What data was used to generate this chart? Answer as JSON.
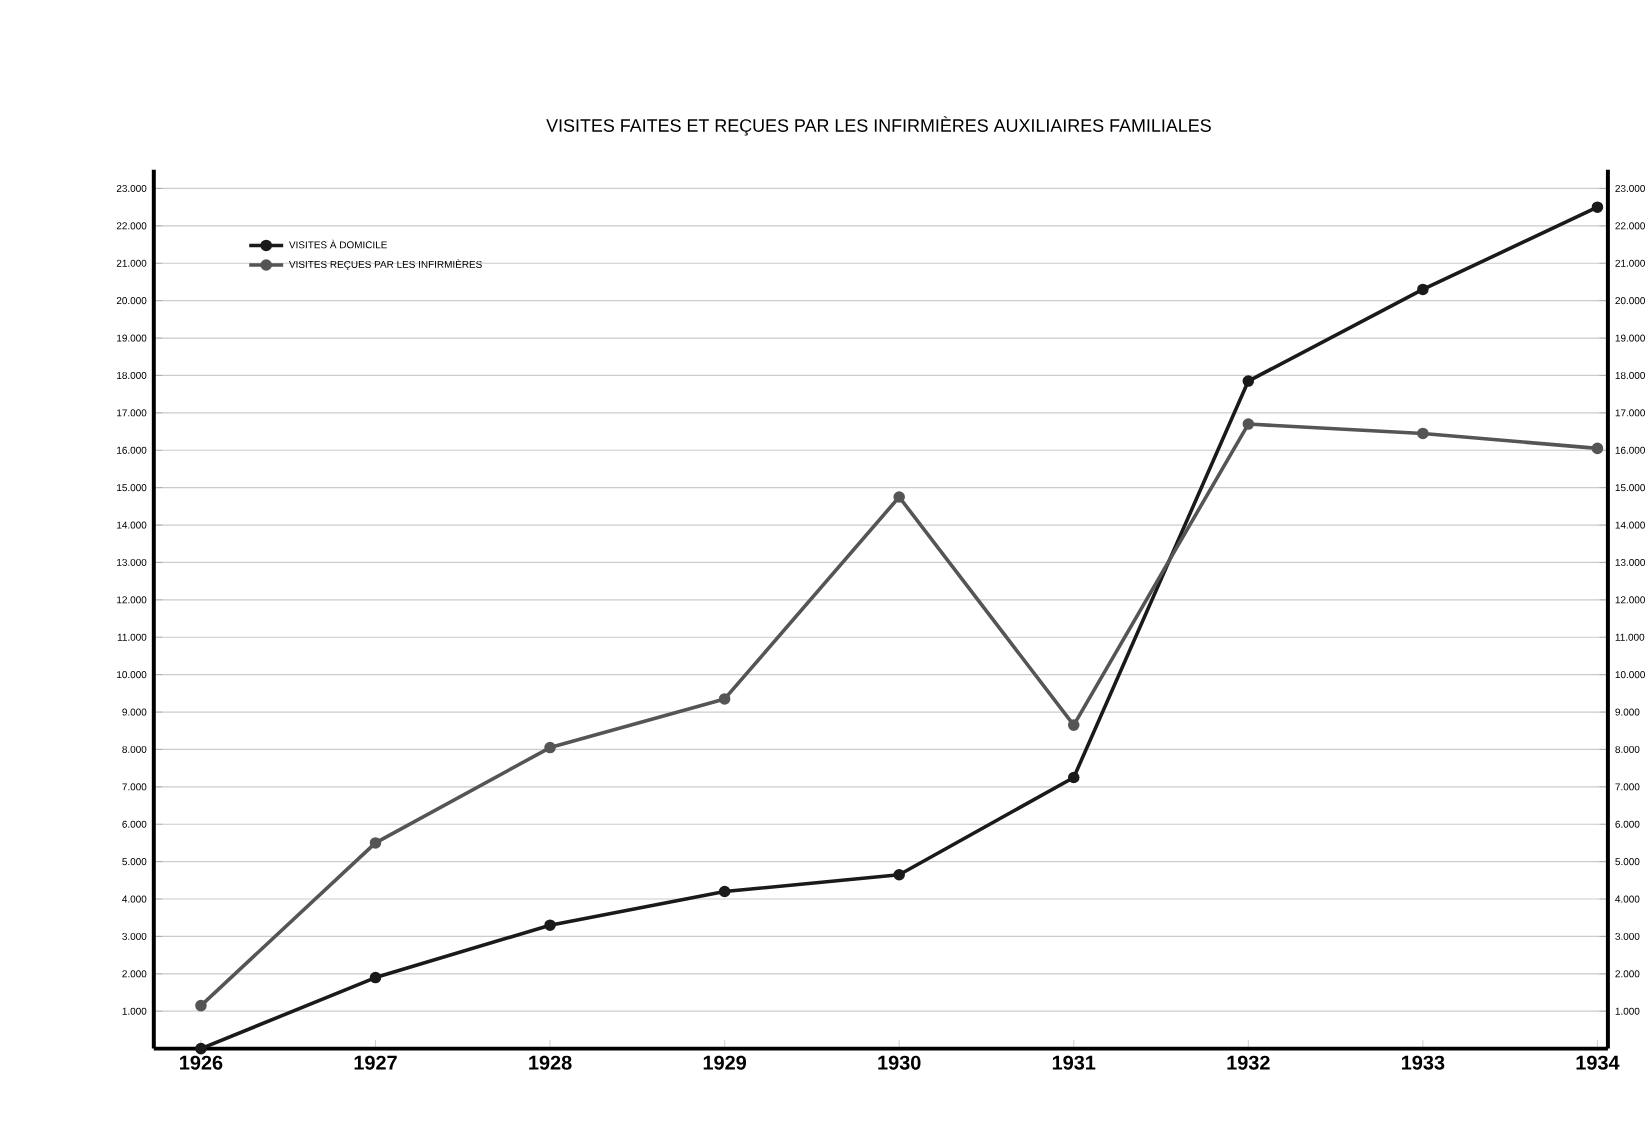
{
  "chart_data": {
    "type": "line",
    "title": "VISITES FAITES ET REÇUES PAR LES INFIRMIÈRES AUXILIAIRES FAMILIALES",
    "categories": [
      "1926",
      "1927",
      "1928",
      "1929",
      "1930",
      "1931",
      "1932",
      "1933",
      "1934"
    ],
    "series": [
      {
        "name": "VISITES À DOMICILE",
        "color": "#1a1a1a",
        "values": [
          0,
          1900,
          3300,
          4200,
          4650,
          7250,
          17850,
          20300,
          22500
        ]
      },
      {
        "name": "VISITES REÇUES PAR LES INFIRMIÈRES",
        "color": "#555555",
        "values": [
          1150,
          5500,
          8050,
          9350,
          14750,
          8650,
          16700,
          16450,
          16050
        ]
      }
    ],
    "ylim": [
      0,
      23500
    ],
    "yticks": [
      {
        "value": 1000,
        "label": "1.000"
      },
      {
        "value": 2000,
        "label": "2.000"
      },
      {
        "value": 3000,
        "label": "3.000"
      },
      {
        "value": 4000,
        "label": "4.000"
      },
      {
        "value": 5000,
        "label": "5.000"
      },
      {
        "value": 6000,
        "label": "6.000"
      },
      {
        "value": 7000,
        "label": "7.000"
      },
      {
        "value": 8000,
        "label": "8.000"
      },
      {
        "value": 9000,
        "label": "9.000"
      },
      {
        "value": 10000,
        "label": "10.000"
      },
      {
        "value": 11000,
        "label": "11.000"
      },
      {
        "value": 12000,
        "label": "12.000"
      },
      {
        "value": 13000,
        "label": "13.000"
      },
      {
        "value": 14000,
        "label": "14.000"
      },
      {
        "value": 15000,
        "label": "15.000"
      },
      {
        "value": 16000,
        "label": "16.000"
      },
      {
        "value": 17000,
        "label": "17.000"
      },
      {
        "value": 18000,
        "label": "18.000"
      },
      {
        "value": 19000,
        "label": "19.000"
      },
      {
        "value": 20000,
        "label": "20.000"
      },
      {
        "value": 21000,
        "label": "21.000"
      },
      {
        "value": 22000,
        "label": "22.000"
      },
      {
        "value": 23000,
        "label": "23.000"
      }
    ],
    "y2lim": [
      0,
      23500
    ],
    "y2ticks": [
      {
        "value": 1000,
        "label": "1.000"
      },
      {
        "value": 2000,
        "label": "2.000"
      },
      {
        "value": 3000,
        "label": "3.000"
      },
      {
        "value": 4000,
        "label": "4.000"
      },
      {
        "value": 5000,
        "label": "5.000"
      },
      {
        "value": 6000,
        "label": "6.000"
      },
      {
        "value": 7000,
        "label": "7.000"
      },
      {
        "value": 8000,
        "label": "8.000"
      },
      {
        "value": 9000,
        "label": "9.000"
      },
      {
        "value": 10000,
        "label": "10.000"
      },
      {
        "value": 11000,
        "label": "11.000"
      },
      {
        "value": 12000,
        "label": "12.000"
      },
      {
        "value": 13000,
        "label": "13.000"
      },
      {
        "value": 14000,
        "label": "14.000"
      },
      {
        "value": 15000,
        "label": "15.000"
      },
      {
        "value": 16000,
        "label": "16.000"
      },
      {
        "value": 17000,
        "label": "17.000"
      },
      {
        "value": 18000,
        "label": "18.000"
      },
      {
        "value": 19000,
        "label": "19.000"
      },
      {
        "value": 20000,
        "label": "20.000"
      },
      {
        "value": 21000,
        "label": "21.000"
      },
      {
        "value": 22000,
        "label": "22.000"
      },
      {
        "value": 23000,
        "label": "23.000"
      }
    ],
    "grid": "y",
    "legend": "top left",
    "marker": "circle",
    "line_style": "solid"
  }
}
